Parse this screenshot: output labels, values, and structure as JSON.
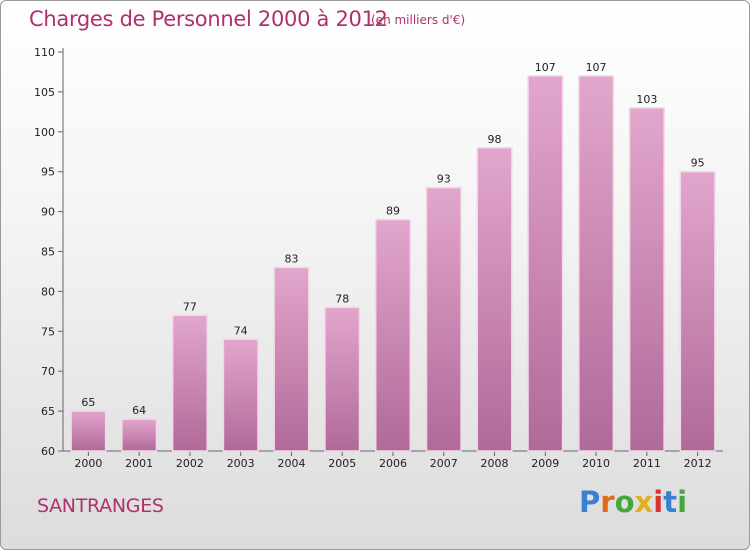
{
  "header": {
    "title": "Charges de Personnel 2000 à 2012",
    "subtitle": "(en milliers d'€)"
  },
  "footer": {
    "commune": "SANTRANGES",
    "brand_letters": [
      "P",
      "r",
      "o",
      "x",
      "i",
      "t",
      "i"
    ],
    "brand_colors": [
      "#3a7fd0",
      "#e06a1a",
      "#46a83a",
      "#e0b020",
      "#d8342e",
      "#3a7fd0",
      "#46a83a"
    ]
  },
  "colors": {
    "text_accent": "#b0306e",
    "bar_top": "#e2a6cc",
    "bar_bottom": "#b06a98",
    "bar_edge": "#f3d6e8"
  },
  "chart_data": {
    "type": "bar",
    "categories": [
      "2000",
      "2001",
      "2002",
      "2003",
      "2004",
      "2005",
      "2006",
      "2007",
      "2008",
      "2009",
      "2010",
      "2011",
      "2012"
    ],
    "values": [
      65,
      64,
      77,
      74,
      83,
      78,
      89,
      93,
      98,
      107,
      107,
      103,
      95
    ],
    "data_labels": [
      "65",
      "64",
      "77",
      "74",
      "83",
      "78",
      "89",
      "93",
      "98",
      "107",
      "107",
      "103",
      "95"
    ],
    "yticks": [
      "60",
      "65",
      "70",
      "75",
      "80",
      "85",
      "90",
      "95",
      "100",
      "105",
      "110"
    ],
    "ylim": [
      60,
      110
    ],
    "grid": false,
    "legend": "none"
  }
}
